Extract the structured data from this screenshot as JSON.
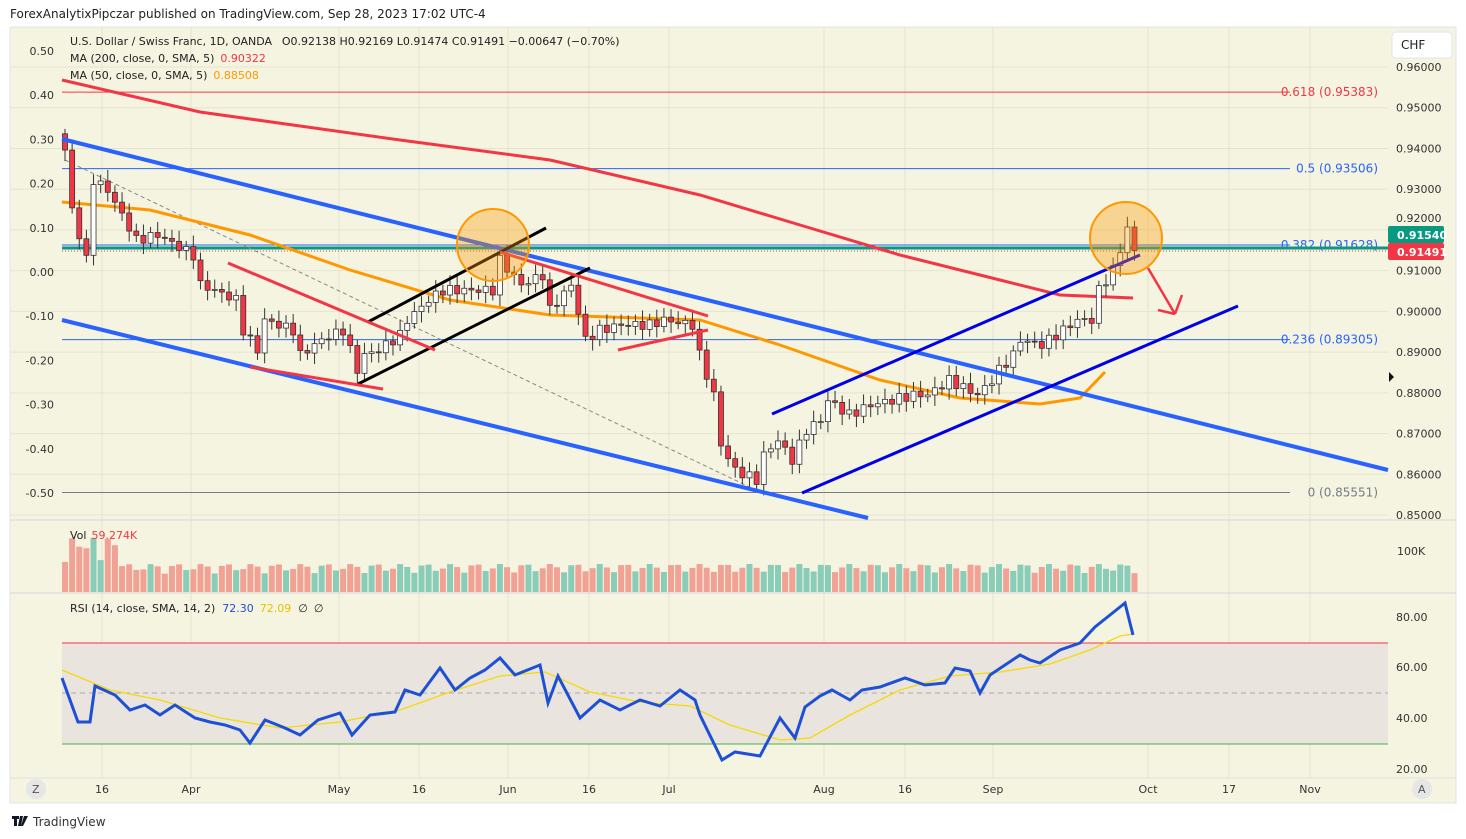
{
  "published": "ForexAnalytixPipczar published on TradingView.com, Sep 28, 2023 17:02 UTC-4",
  "legend": {
    "symbol": "U.S. Dollar / Swiss Franc, 1D, OANDA",
    "ohlc": "O0.92138  H0.92169  L0.91474  C0.91491  −0.00647 (−0.70%)",
    "ma200_label": "MA (200, close, 0, SMA, 5)",
    "ma200_value": "0.90322",
    "ma50_label": "MA (50, close, 0, SMA, 5)",
    "ma50_value": "0.88508"
  },
  "currency": "CHF",
  "price_badges": {
    "upper": "0.91540",
    "last": "0.91491"
  },
  "fib_levels": [
    {
      "label": "0.618 (0.95383)",
      "price": 0.95383,
      "color": "#f23645"
    },
    {
      "label": "0.5 (0.93506)",
      "price": 0.93506,
      "color": "#2962ff"
    },
    {
      "label": "0.382 (0.91628)",
      "price": 0.91628,
      "color": "#2962ff"
    },
    {
      "label": "0.236 (0.89305)",
      "price": 0.89305,
      "color": "#2962ff"
    },
    {
      "label": "0 (0.85551)",
      "price": 0.85551,
      "color": "#787b86"
    }
  ],
  "volume": {
    "label": "Vol",
    "value": "59.274K",
    "axis": "100K"
  },
  "rsi": {
    "label": "RSI (14, close, SMA, 14, 2)",
    "value": "72.30",
    "ma_value": "72.09",
    "extra1": "∅",
    "extra2": "∅",
    "axis": [
      "80.00",
      "60.00",
      "40.00",
      "20.00"
    ]
  },
  "footer": {
    "brand": "TradingView",
    "z_button": "Z",
    "a_button": "A"
  },
  "colors": {
    "up": "#089981",
    "down": "#f23645",
    "ma200": "#f23645",
    "ma50": "#ff9800",
    "bg": "#f5f4e1"
  },
  "chart_data": {
    "type": "candlestick",
    "title": "U.S. Dollar / Swiss Franc, 1D, OANDA",
    "right_axis_ticks": [
      "0.96000",
      "0.95000",
      "0.94000",
      "0.93000",
      "0.92000",
      "0.91000",
      "0.90000",
      "0.89000",
      "0.88000",
      "0.87000",
      "0.86000",
      "0.85000"
    ],
    "left_axis_ticks": [
      "0.50",
      "0.40",
      "0.30",
      "0.20",
      "0.10",
      "0.00",
      "-0.10",
      "-0.20",
      "-0.30",
      "-0.40",
      "-0.50"
    ],
    "x_tick_labels": [
      "16",
      "Apr",
      "May",
      "16",
      "Jun",
      "16",
      "Jul",
      "Aug",
      "16",
      "Sep",
      "Oct",
      "17",
      "Nov"
    ],
    "ylim": [
      0.85,
      0.96
    ],
    "close_path": [
      [
        0,
        0.9396
      ],
      [
        1,
        0.9249
      ],
      [
        3,
        0.9126
      ],
      [
        4,
        0.9323
      ],
      [
        6,
        0.9298
      ],
      [
        8,
        0.9237
      ],
      [
        10,
        0.9175
      ],
      [
        13,
        0.9188
      ],
      [
        18,
        0.9138
      ],
      [
        19,
        0.9065
      ],
      [
        21,
        0.9052
      ],
      [
        24,
        0.9028
      ],
      [
        25,
        0.8954
      ],
      [
        27,
        0.8905
      ],
      [
        28,
        0.8979
      ],
      [
        32,
        0.8954
      ],
      [
        33,
        0.8893
      ],
      [
        36,
        0.893
      ],
      [
        39,
        0.8954
      ],
      [
        41,
        0.8856
      ],
      [
        42,
        0.8893
      ],
      [
        44,
        0.8905
      ],
      [
        47,
        0.8942
      ],
      [
        48,
        0.8979
      ],
      [
        51,
        0.9028
      ],
      [
        53,
        0.9052
      ],
      [
        57,
        0.9052
      ],
      [
        60,
        0.9052
      ],
      [
        61,
        0.9126
      ],
      [
        64,
        0.9065
      ],
      [
        67,
        0.9089
      ],
      [
        68,
        0.9003
      ],
      [
        71,
        0.9065
      ],
      [
        73,
        0.893
      ],
      [
        75,
        0.8954
      ],
      [
        78,
        0.8967
      ],
      [
        82,
        0.8967
      ],
      [
        84,
        0.8979
      ],
      [
        88,
        0.8967
      ],
      [
        89,
        0.8893
      ],
      [
        91,
        0.8795
      ],
      [
        92,
        0.8672
      ],
      [
        94,
        0.861
      ],
      [
        97,
        0.8586
      ],
      [
        98,
        0.8647
      ],
      [
        100,
        0.8684
      ],
      [
        102,
        0.8635
      ],
      [
        104,
        0.8709
      ],
      [
        106,
        0.8733
      ],
      [
        107,
        0.8782
      ],
      [
        110,
        0.8746
      ],
      [
        113,
        0.877
      ],
      [
        116,
        0.8782
      ],
      [
        119,
        0.8795
      ],
      [
        121,
        0.8795
      ],
      [
        124,
        0.8831
      ],
      [
        128,
        0.8795
      ],
      [
        130,
        0.8831
      ],
      [
        131,
        0.8856
      ],
      [
        133,
        0.8893
      ],
      [
        134,
        0.893
      ],
      [
        137,
        0.8918
      ],
      [
        140,
        0.8954
      ],
      [
        142,
        0.8979
      ],
      [
        144,
        0.8979
      ],
      [
        145,
        0.9052
      ],
      [
        147,
        0.9102
      ],
      [
        148,
        0.9151
      ],
      [
        149,
        0.9205
      ],
      [
        150,
        0.91491
      ]
    ]
  }
}
